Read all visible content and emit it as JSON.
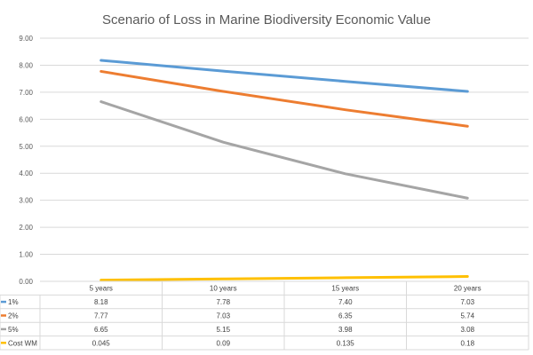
{
  "chart_data": {
    "type": "line",
    "title": "Scenario of Loss in Marine Biodiversity Economic Value",
    "xlabel": "",
    "ylabel": "",
    "categories": [
      "5 years",
      "10 years",
      "15 years",
      "20 years"
    ],
    "ylim": [
      0,
      9
    ],
    "ytick_step": 1,
    "ytick_labels": [
      "0.00",
      "1.00",
      "2.00",
      "3.00",
      "4.00",
      "5.00",
      "6.00",
      "7.00",
      "8.00",
      "9.00"
    ],
    "grid": true,
    "legend": "data-table-below",
    "series": [
      {
        "name": "1%",
        "color": "#5b9bd5",
        "values": [
          8.18,
          7.78,
          7.4,
          7.03
        ],
        "display": [
          "8.18",
          "7.78",
          "7.40",
          "7.03"
        ]
      },
      {
        "name": "2%",
        "color": "#ed7d31",
        "values": [
          7.77,
          7.03,
          6.35,
          5.74
        ],
        "display": [
          "7.77",
          "7.03",
          "6.35",
          "5.74"
        ]
      },
      {
        "name": "5%",
        "color": "#a5a5a5",
        "values": [
          6.65,
          5.15,
          3.98,
          3.08
        ],
        "display": [
          "6.65",
          "5.15",
          "3.98",
          "3.08"
        ]
      },
      {
        "name": "Cost WM",
        "color": "#ffc000",
        "values": [
          0.045,
          0.09,
          0.135,
          0.18
        ],
        "display": [
          "0.045",
          "0.09",
          "0.135",
          "0.18"
        ]
      }
    ]
  }
}
